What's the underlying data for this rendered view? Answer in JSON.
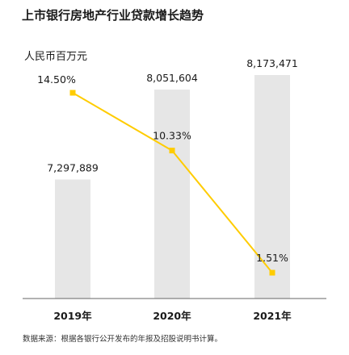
{
  "chart_data": {
    "type": "bar",
    "title": "上市银行房地产行业贷款增长趋势",
    "ylabel": "人民币百万元",
    "categories": [
      "2019年",
      "2020年",
      "2021年"
    ],
    "series": [
      {
        "values": [
          7297889,
          8051604,
          8173471
        ],
        "labels": [
          "7,297,889",
          "8,051,604",
          "8,173,471"
        ]
      },
      {
        "type": "line",
        "values": [
          14.5,
          10.33,
          1.51
        ],
        "labels": [
          "14.50%",
          "10.33%",
          "1.51%"
        ]
      }
    ],
    "ylim": [
      0,
      9000000
    ],
    "y2lim": [
      0,
      17
    ],
    "grid": false,
    "colors": {
      "bar": "#e6e6e6",
      "line": "#ffcc00",
      "axis": "#666666"
    },
    "source": "数据来源：根据各银行公开发布的年报及招股说明书计算。"
  }
}
